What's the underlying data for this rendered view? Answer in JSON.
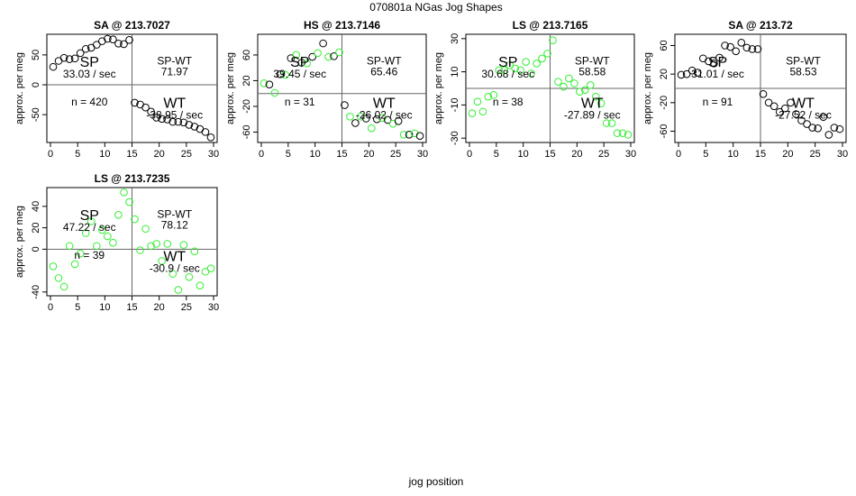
{
  "figure": {
    "title": "070801a   NGas Jog Shapes",
    "xlabel": "jog position"
  },
  "colors": {
    "black": "#000000",
    "green": "#33ee33",
    "axis": "#000000",
    "quadrant_line": "#666666"
  },
  "chart_data": [
    {
      "type": "scatter",
      "title": "SA @ 213.7027",
      "ylabel": "approx. per meg",
      "color": "black",
      "xlim": [
        0,
        30
      ],
      "ylim": [
        -92,
        80
      ],
      "x_ticks": [
        0,
        5,
        10,
        15,
        20,
        25,
        30
      ],
      "y_ticks": [
        -50,
        0,
        50
      ],
      "split_x": 15,
      "split_y": 0,
      "labels": {
        "sp": "SP",
        "sp_rate": "33.03 / sec",
        "spwt_label": "SP-WT",
        "spwt_value": "71.97",
        "n": "n = 420",
        "wt": "WT",
        "wt_rate": "-38.95 / sec"
      },
      "x": [
        0.5,
        1.5,
        2.5,
        3.5,
        4.5,
        5.5,
        6.5,
        7.5,
        8.5,
        9.5,
        10.5,
        11.5,
        12.5,
        13.5,
        14.5,
        15.5,
        16.5,
        17.5,
        18.5,
        19.5,
        20.5,
        21.5,
        22.5,
        23.5,
        24.5,
        25.5,
        26.5,
        27.5,
        28.5,
        29.5
      ],
      "y": [
        30,
        40,
        45,
        43,
        44,
        53,
        60,
        62,
        67,
        73,
        77,
        76,
        69,
        68,
        75,
        -30,
        -33,
        -38,
        -45,
        -55,
        -57,
        -58,
        -62,
        -62,
        -63,
        -67,
        -70,
        -74,
        -79,
        -88
      ]
    },
    {
      "type": "scatter",
      "title": "HS @ 213.7146",
      "ylabel": "approx. per meg",
      "color": "green-black",
      "xlim": [
        0,
        30
      ],
      "ylim": [
        -72,
        88
      ],
      "x_ticks": [
        0,
        5,
        10,
        15,
        20,
        25,
        30
      ],
      "y_ticks": [
        -60,
        -20,
        20,
        60
      ],
      "split_x": 15,
      "split_y": 0,
      "labels": {
        "sp": "SP",
        "sp_rate": "39.45 / sec",
        "spwt_label": "SP-WT",
        "spwt_value": "65.46",
        "n": "n = 31",
        "wt": "WT",
        "wt_rate": "-26.02 / sec"
      },
      "x": [
        0.5,
        1.5,
        2.5,
        3.5,
        4.5,
        5.5,
        6.5,
        7.5,
        8.5,
        9.5,
        10.5,
        11.5,
        12.5,
        13.5,
        14.5,
        15.5,
        16.5,
        17.5,
        18.5,
        19.5,
        20.5,
        21.5,
        22.5,
        23.5,
        24.5,
        25.5,
        26.5,
        27.5,
        28.5,
        29.5
      ],
      "y": [
        16,
        14,
        1,
        30,
        29,
        55,
        60,
        48,
        47,
        57,
        63,
        78,
        57,
        58,
        64,
        -18,
        -36,
        -46,
        -36,
        -39,
        -54,
        -40,
        -38,
        -41,
        -47,
        -43,
        -64,
        -64,
        -62,
        -66
      ]
    },
    {
      "type": "scatter",
      "title": "LS @ 213.7165",
      "ylabel": "approx. per meg",
      "color": "green",
      "xlim": [
        0,
        30
      ],
      "ylim": [
        -31,
        31
      ],
      "x_ticks": [
        0,
        5,
        10,
        15,
        20,
        25,
        30
      ],
      "y_ticks": [
        -30,
        -10,
        10,
        30
      ],
      "split_x": 15,
      "split_y": 0,
      "labels": {
        "sp": "SP",
        "sp_rate": "30.68 / sec",
        "spwt_label": "SP-WT",
        "spwt_value": "58.58",
        "n": "n = 38",
        "wt": "WT",
        "wt_rate": "-27.89 / sec"
      },
      "x": [
        0.5,
        1.5,
        2.5,
        3.5,
        4.5,
        5.5,
        6.5,
        7.5,
        8.5,
        9.5,
        10.5,
        11.5,
        12.5,
        13.5,
        14.5,
        15.5,
        16.5,
        17.5,
        18.5,
        19.5,
        20.5,
        21.5,
        22.5,
        23.5,
        24.5,
        25.5,
        26.5,
        27.5,
        28.5,
        29.5
      ],
      "y": [
        -15,
        -8,
        -14,
        -5,
        -4,
        11,
        11,
        14,
        12,
        11,
        16,
        9,
        15,
        18,
        21,
        29,
        4,
        1,
        6,
        3,
        -2,
        -1,
        2,
        -5,
        -9,
        -21,
        -21,
        -27,
        -27,
        -28
      ]
    },
    {
      "type": "scatter",
      "title": "SA @ 213.72",
      "ylabel": "approx. per meg",
      "color": "black",
      "xlim": [
        0,
        30
      ],
      "ylim": [
        -72,
        72
      ],
      "x_ticks": [
        0,
        5,
        10,
        15,
        20,
        25,
        30
      ],
      "y_ticks": [
        -60,
        -20,
        20,
        60
      ],
      "split_x": 15,
      "split_y": 0,
      "labels": {
        "sp": "SP",
        "sp_rate": "31.01 / sec",
        "spwt_label": "SP-WT",
        "spwt_value": "58.53",
        "n": "n = 91",
        "wt": "WT",
        "wt_rate": "-27.52 / sec"
      },
      "x": [
        0.5,
        1.5,
        2.5,
        3.5,
        4.5,
        5.5,
        6.5,
        7.5,
        8.5,
        9.5,
        10.5,
        11.5,
        12.5,
        13.5,
        14.5,
        15.5,
        16.5,
        17.5,
        18.5,
        19.5,
        20.5,
        21.5,
        22.5,
        23.5,
        24.5,
        25.5,
        26.5,
        27.5,
        28.5,
        29.5
      ],
      "y": [
        19,
        20,
        25,
        22,
        42,
        38,
        35,
        43,
        60,
        58,
        52,
        64,
        57,
        55,
        55,
        -8,
        -20,
        -25,
        -33,
        -28,
        -20,
        -36,
        -45,
        -50,
        -55,
        -56,
        -40,
        -65,
        -55,
        -57
      ]
    },
    {
      "type": "scatter",
      "title": "LS @ 213.7235",
      "ylabel": "approx. per meg",
      "color": "green",
      "xlim": [
        0,
        30
      ],
      "ylim": [
        -41,
        55
      ],
      "x_ticks": [
        0,
        5,
        10,
        15,
        20,
        25,
        30
      ],
      "y_ticks": [
        -40,
        0,
        20,
        40
      ],
      "split_x": 15,
      "split_y": 0,
      "labels": {
        "sp": "SP",
        "sp_rate": "47.22 / sec",
        "spwt_label": "SP-WT",
        "spwt_value": "78.12",
        "n": "n = 39",
        "wt": "WT",
        "wt_rate": "-30.9 / sec"
      },
      "x": [
        0.5,
        1.5,
        2.5,
        3.5,
        4.5,
        5.5,
        6.5,
        7.5,
        8.5,
        9.5,
        10.5,
        11.5,
        12.5,
        13.5,
        14.5,
        15.5,
        16.5,
        17.5,
        18.5,
        19.5,
        20.5,
        21.5,
        22.5,
        23.5,
        24.5,
        25.5,
        26.5,
        27.5,
        28.5,
        29.5
      ],
      "y": [
        -16,
        -27,
        -35,
        3,
        -14,
        -4,
        15,
        26,
        3,
        18,
        12,
        6,
        32,
        53,
        44,
        28,
        -1,
        19,
        3,
        5,
        -11,
        5,
        -23,
        -38,
        4,
        -26,
        -2,
        -34,
        -21,
        -18
      ]
    }
  ]
}
